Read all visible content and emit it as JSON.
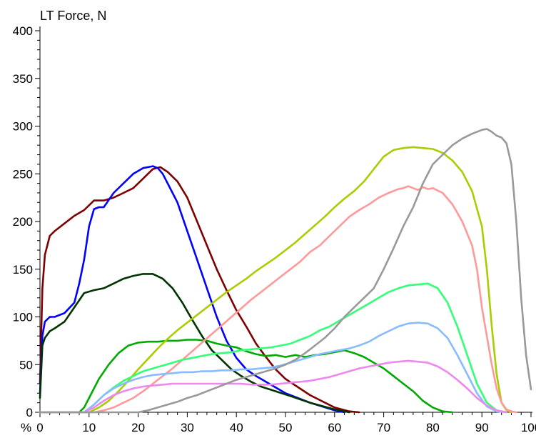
{
  "chart_data": {
    "type": "line",
    "title": "LT Force, N",
    "xlabel": "%",
    "ylabel": "",
    "xlim": [
      0,
      100
    ],
    "ylim": [
      0,
      400
    ],
    "x_ticks": [
      "0",
      "10",
      "20",
      "30",
      "40",
      "50",
      "60",
      "70",
      "80",
      "90",
      "100"
    ],
    "y_ticks": [
      "0",
      "50",
      "100",
      "150",
      "200",
      "250",
      "300",
      "350",
      "400"
    ],
    "grid": false,
    "legend": "none",
    "series": [
      {
        "color": "#7f0000",
        "x": [
          0,
          0.5,
          1,
          2,
          3,
          5,
          7,
          9,
          11,
          13,
          15,
          17,
          19,
          21,
          23,
          24.5,
          26,
          28,
          30,
          32,
          34,
          36,
          38,
          40,
          42,
          44,
          46,
          48,
          50,
          55,
          60,
          63,
          65
        ],
        "y": [
          30,
          130,
          165,
          185,
          190,
          198,
          206,
          212,
          222,
          222,
          225,
          230,
          235,
          245,
          255,
          257,
          252,
          242,
          225,
          200,
          175,
          150,
          128,
          107,
          90,
          72,
          58,
          45,
          35,
          18,
          5,
          1,
          0
        ]
      },
      {
        "color": "#0000ff",
        "x": [
          0,
          0.5,
          1,
          2,
          3,
          5,
          7,
          8,
          9,
          10,
          11,
          12,
          13,
          15,
          17,
          19,
          21,
          23,
          24,
          25,
          26,
          28,
          30,
          32,
          34,
          36,
          38,
          40,
          42,
          44,
          46,
          48,
          50,
          55,
          60,
          62
        ],
        "y": [
          20,
          80,
          95,
          100,
          100,
          104,
          115,
          135,
          160,
          195,
          213,
          215,
          215,
          230,
          240,
          250,
          256,
          258,
          256,
          250,
          240,
          220,
          190,
          160,
          130,
          100,
          75,
          57,
          45,
          38,
          32,
          26,
          20,
          10,
          2,
          0
        ]
      },
      {
        "color": "#003300",
        "x": [
          0,
          0.5,
          1,
          2,
          3,
          5,
          7,
          9,
          11,
          13,
          15,
          17,
          19,
          21,
          23,
          25,
          27,
          29,
          31,
          33,
          35,
          37,
          39,
          41,
          43,
          45,
          48,
          51,
          55,
          60,
          63
        ],
        "y": [
          15,
          70,
          78,
          85,
          88,
          95,
          110,
          125,
          128,
          130,
          135,
          140,
          143,
          145,
          145,
          140,
          130,
          115,
          97,
          80,
          65,
          55,
          45,
          38,
          32,
          27,
          22,
          17,
          10,
          3,
          0
        ]
      },
      {
        "color": "#00aa00",
        "x": [
          0,
          8,
          9,
          10,
          12,
          14,
          16,
          18,
          20,
          22,
          24,
          26,
          28,
          30,
          32,
          34,
          36,
          38,
          40,
          42,
          44,
          46,
          48,
          50,
          52,
          54,
          56,
          58,
          60,
          62,
          64,
          66,
          68,
          70,
          72,
          74,
          76,
          78,
          80,
          82,
          84
        ],
        "y": [
          0,
          0,
          5,
          15,
          35,
          50,
          62,
          70,
          73,
          74,
          74,
          75,
          75,
          76,
          76,
          75,
          72,
          70,
          68,
          64,
          61,
          59,
          60,
          58,
          60,
          58,
          60,
          61,
          63,
          65,
          62,
          58,
          52,
          46,
          38,
          30,
          22,
          12,
          5,
          1,
          0
        ]
      },
      {
        "color": "#aacc00",
        "x": [
          0,
          10,
          12,
          14,
          16,
          18,
          20,
          22,
          24,
          26,
          28,
          30,
          32,
          34,
          36,
          38,
          40,
          42,
          44,
          46,
          48,
          50,
          52,
          54,
          56,
          58,
          60,
          62,
          64,
          66,
          68,
          70,
          72,
          74,
          76,
          78,
          80,
          82,
          84,
          86,
          88,
          90,
          91,
          92,
          93,
          94,
          95,
          96
        ],
        "y": [
          0,
          0,
          5,
          12,
          22,
          33,
          45,
          56,
          67,
          77,
          86,
          94,
          102,
          110,
          118,
          126,
          133,
          140,
          148,
          155,
          162,
          170,
          178,
          187,
          196,
          205,
          215,
          224,
          232,
          242,
          255,
          268,
          275,
          277,
          278,
          277,
          276,
          272,
          264,
          252,
          232,
          195,
          150,
          90,
          40,
          10,
          2,
          0
        ]
      },
      {
        "color": "#ff9999",
        "x": [
          0,
          11,
          13,
          15,
          17,
          19,
          21,
          23,
          25,
          27,
          29,
          31,
          33,
          35,
          37,
          39,
          41,
          43,
          45,
          47,
          49,
          51,
          53,
          55,
          57,
          59,
          61,
          63,
          65,
          67,
          69,
          71,
          73,
          74,
          75,
          76,
          77,
          78,
          79,
          80,
          82,
          84,
          86,
          88,
          89,
          90,
          91,
          92,
          93,
          94,
          95,
          96,
          97
        ],
        "y": [
          0,
          0,
          2,
          5,
          10,
          15,
          22,
          30,
          38,
          46,
          55,
          64,
          73,
          82,
          91,
          100,
          109,
          118,
          126,
          134,
          142,
          150,
          158,
          168,
          175,
          185,
          195,
          205,
          212,
          218,
          225,
          230,
          234,
          235,
          237,
          235,
          233,
          236,
          234,
          235,
          230,
          218,
          200,
          175,
          150,
          110,
          80,
          50,
          25,
          10,
          3,
          1,
          0
        ]
      },
      {
        "color": "#33ff77",
        "x": [
          0,
          9,
          11,
          13,
          15,
          17,
          19,
          21,
          23,
          25,
          27,
          29,
          31,
          33,
          35,
          37,
          39,
          41,
          43,
          45,
          47,
          49,
          51,
          53,
          55,
          57,
          59,
          61,
          63,
          65,
          67,
          69,
          71,
          73,
          75,
          77,
          79,
          81,
          83,
          85,
          87,
          89,
          91,
          93,
          95
        ],
        "y": [
          0,
          0,
          8,
          18,
          26,
          33,
          38,
          43,
          46,
          49,
          52,
          55,
          57,
          59,
          61,
          62,
          63,
          65,
          66,
          67,
          68,
          70,
          72,
          76,
          80,
          86,
          90,
          96,
          102,
          108,
          114,
          120,
          126,
          130,
          133,
          134,
          135,
          130,
          115,
          90,
          60,
          30,
          10,
          2,
          0
        ]
      },
      {
        "color": "#88bbff",
        "x": [
          0,
          9,
          11,
          13,
          15,
          17,
          19,
          21,
          23,
          25,
          27,
          29,
          31,
          33,
          35,
          37,
          39,
          41,
          43,
          45,
          47,
          49,
          51,
          53,
          55,
          57,
          59,
          61,
          63,
          65,
          67,
          69,
          71,
          73,
          75,
          77,
          79,
          81,
          83,
          85,
          87,
          89,
          91,
          93,
          95
        ],
        "y": [
          0,
          0,
          8,
          18,
          25,
          30,
          34,
          37,
          39,
          40,
          41,
          42,
          42,
          43,
          43,
          44,
          44,
          45,
          45,
          46,
          47,
          49,
          52,
          55,
          58,
          61,
          63,
          65,
          67,
          70,
          74,
          80,
          85,
          90,
          93,
          94,
          93,
          88,
          78,
          60,
          40,
          20,
          6,
          1,
          0
        ]
      },
      {
        "color": "#ee88ee",
        "x": [
          0,
          9,
          11,
          13,
          15,
          17,
          19,
          21,
          23,
          25,
          27,
          29,
          31,
          33,
          35,
          37,
          39,
          41,
          43,
          45,
          47,
          49,
          51,
          53,
          55,
          57,
          59,
          61,
          63,
          65,
          67,
          69,
          71,
          73,
          75,
          77,
          79,
          81,
          83,
          85,
          87,
          89,
          91,
          93,
          95
        ],
        "y": [
          0,
          0,
          5,
          12,
          18,
          22,
          25,
          27,
          28,
          29,
          30,
          30,
          30,
          30,
          30,
          30,
          30,
          30,
          29,
          29,
          29,
          30,
          31,
          32,
          33,
          35,
          37,
          40,
          43,
          46,
          48,
          50,
          52,
          53,
          54,
          53,
          52,
          48,
          42,
          34,
          25,
          15,
          7,
          2,
          0
        ]
      },
      {
        "color": "#999999",
        "x": [
          0,
          20,
          22,
          24,
          26,
          28,
          30,
          32,
          34,
          36,
          38,
          40,
          42,
          44,
          46,
          48,
          50,
          52,
          54,
          56,
          58,
          60,
          62,
          64,
          66,
          68,
          70,
          72,
          74,
          76,
          78,
          80,
          82,
          84,
          86,
          88,
          90,
          91,
          92,
          93,
          94,
          95,
          96,
          97,
          98,
          99,
          100
        ],
        "y": [
          0,
          0,
          2,
          5,
          8,
          11,
          15,
          18,
          22,
          26,
          30,
          34,
          37,
          40,
          43,
          46,
          50,
          55,
          62,
          70,
          78,
          88,
          100,
          110,
          120,
          130,
          150,
          172,
          195,
          215,
          240,
          260,
          270,
          280,
          287,
          292,
          296,
          297,
          294,
          290,
          288,
          282,
          260,
          200,
          120,
          60,
          24
        ]
      }
    ]
  }
}
